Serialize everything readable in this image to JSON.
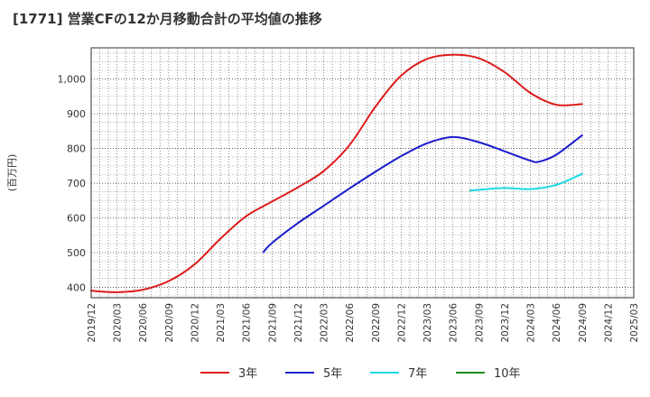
{
  "chart_data": {
    "type": "line",
    "title": "[1771]  営業CFの12か月移動合計の平均値の推移",
    "ylabel": "(百万円)",
    "xlabel": "",
    "ylim": [
      370,
      1090
    ],
    "y_ticks": [
      400,
      500,
      600,
      700,
      800,
      900,
      1000
    ],
    "y_tick_labels": [
      "400",
      "500",
      "600",
      "700",
      "800",
      "900",
      "1,000"
    ],
    "x_ticks": [
      "2019/12",
      "2020/03",
      "2020/06",
      "2020/09",
      "2020/12",
      "2021/03",
      "2021/06",
      "2021/09",
      "2021/12",
      "2022/03",
      "2022/06",
      "2022/09",
      "2022/12",
      "2023/03",
      "2023/06",
      "2023/09",
      "2023/12",
      "2024/03",
      "2024/06",
      "2024/09",
      "2024/12",
      "2025/03"
    ],
    "x_range": [
      "2019/12",
      "2025/03"
    ],
    "grid": true,
    "legend_position": "bottom",
    "series": [
      {
        "name": "3年",
        "color": "#dd1c1c",
        "x": [
          "2019/12",
          "2020/03",
          "2020/06",
          "2020/09",
          "2020/12",
          "2021/03",
          "2021/06",
          "2021/09",
          "2021/12",
          "2022/03",
          "2022/06",
          "2022/09",
          "2022/12",
          "2023/03",
          "2023/06",
          "2023/09",
          "2023/12",
          "2024/03",
          "2024/06",
          "2024/09"
        ],
        "values": [
          390,
          386,
          393,
          418,
          466,
          540,
          605,
          647,
          688,
          735,
          810,
          920,
          1010,
          1058,
          1070,
          1060,
          1020,
          960,
          926,
          928
        ]
      },
      {
        "name": "5年",
        "color": "#1c1ccc",
        "x": [
          "2021/08",
          "2021/09",
          "2021/12",
          "2022/03",
          "2022/06",
          "2022/09",
          "2022/12",
          "2023/03",
          "2023/06",
          "2023/09",
          "2023/12",
          "2024/03",
          "2024/04",
          "2024/06",
          "2024/09"
        ],
        "values": [
          502,
          528,
          585,
          635,
          685,
          733,
          778,
          815,
          833,
          818,
          792,
          765,
          762,
          782,
          838
        ]
      },
      {
        "name": "7年",
        "color": "#1cd9e6",
        "x": [
          "2023/08",
          "2023/09",
          "2023/12",
          "2024/03",
          "2024/06",
          "2024/09"
        ],
        "values": [
          679,
          681,
          686,
          683,
          695,
          727
        ]
      },
      {
        "name": "10年",
        "color": "#1c8c1c",
        "x": [],
        "values": []
      }
    ]
  }
}
